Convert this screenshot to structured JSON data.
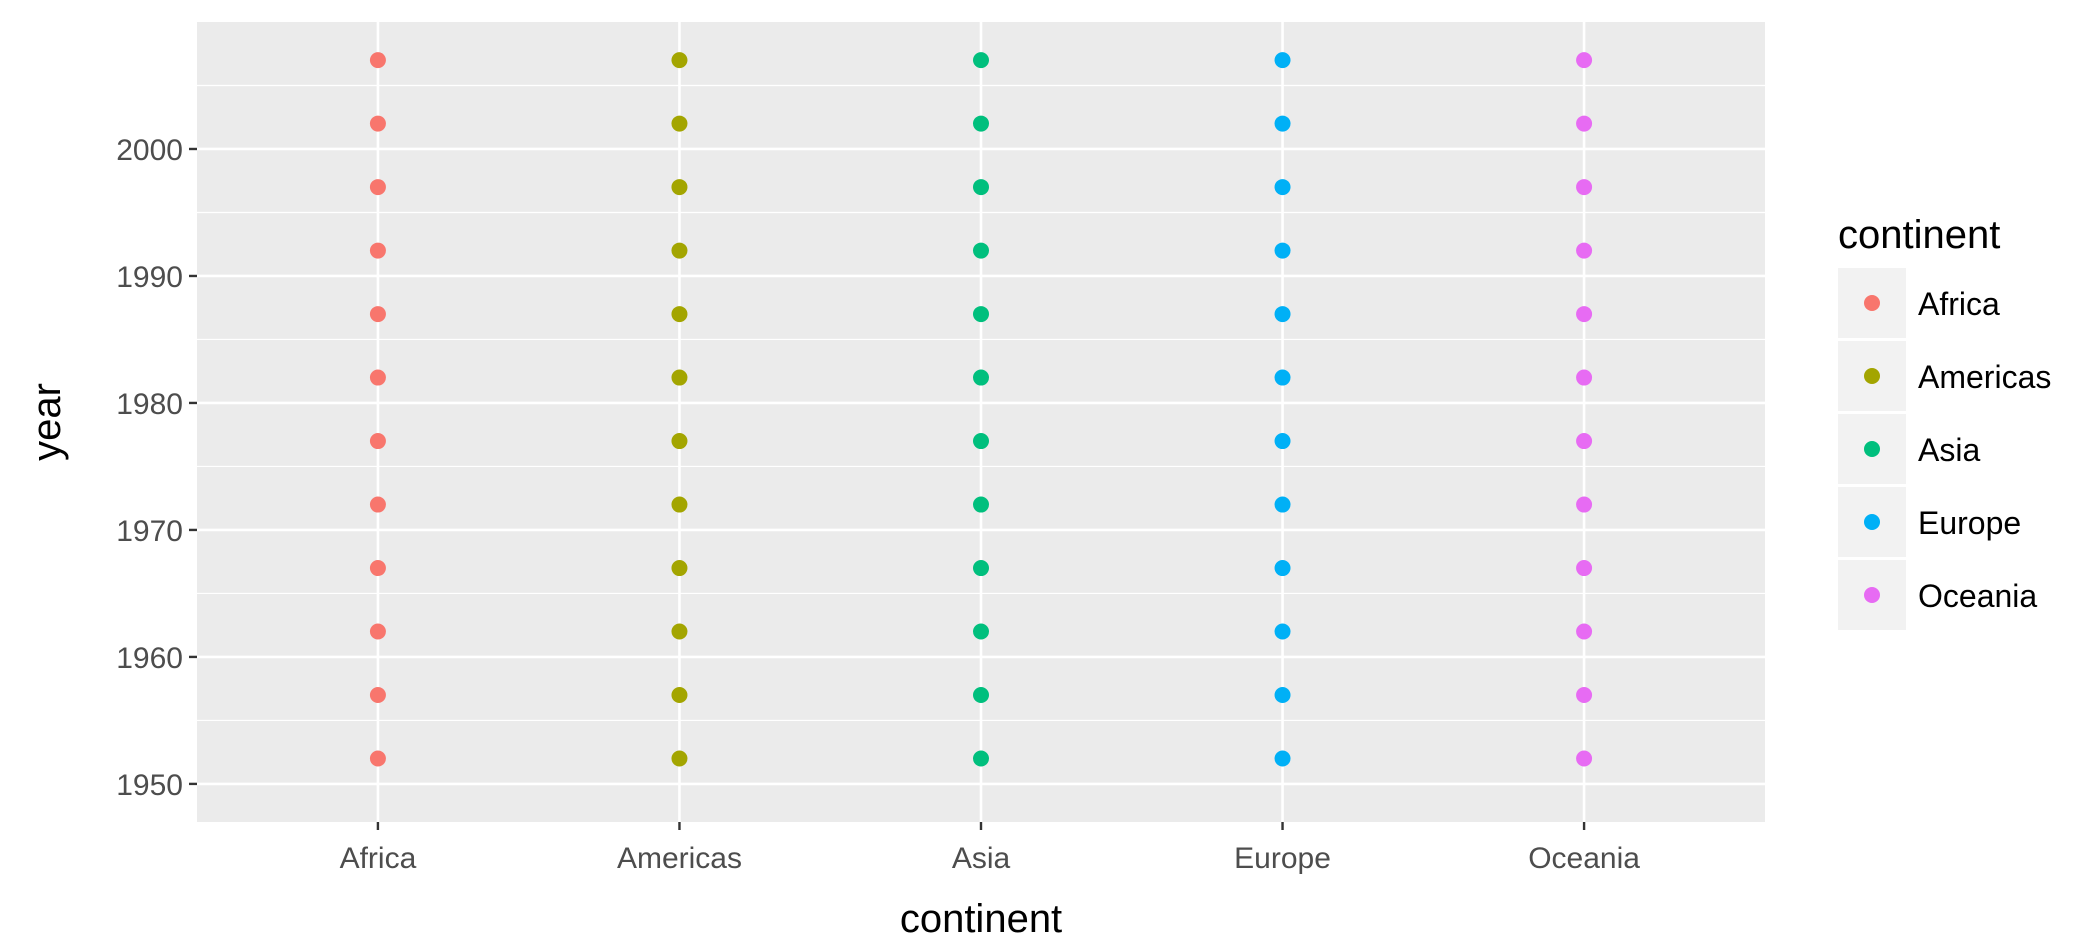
{
  "chart_data": {
    "type": "scatter",
    "title": "",
    "xlabel": "continent",
    "ylabel": "year",
    "categories": [
      "Africa",
      "Americas",
      "Asia",
      "Europe",
      "Oceania"
    ],
    "ylim": [
      1947,
      2010
    ],
    "y_ticks": [
      1950,
      1960,
      1970,
      1980,
      1990,
      2000
    ],
    "y_tick_labels": [
      "1950",
      "1960",
      "1970",
      "1980",
      "1990",
      "2000"
    ],
    "grid": true,
    "background": "#EBEBEB",
    "legend": {
      "title": "continent",
      "position": "right",
      "entries": [
        "Africa",
        "Americas",
        "Asia",
        "Europe",
        "Oceania"
      ]
    },
    "series": [
      {
        "name": "Africa",
        "color": "#F8766D",
        "x": "Africa",
        "y": [
          1952,
          1957,
          1962,
          1967,
          1972,
          1977,
          1982,
          1987,
          1992,
          1997,
          2002,
          2007
        ]
      },
      {
        "name": "Americas",
        "color": "#A3A500",
        "x": "Americas",
        "y": [
          1952,
          1957,
          1962,
          1967,
          1972,
          1977,
          1982,
          1987,
          1992,
          1997,
          2002,
          2007
        ]
      },
      {
        "name": "Asia",
        "color": "#00BF7D",
        "x": "Asia",
        "y": [
          1952,
          1957,
          1962,
          1967,
          1972,
          1977,
          1982,
          1987,
          1992,
          1997,
          2002,
          2007
        ]
      },
      {
        "name": "Europe",
        "color": "#00B0F6",
        "x": "Europe",
        "y": [
          1952,
          1957,
          1962,
          1967,
          1972,
          1977,
          1982,
          1987,
          1992,
          1997,
          2002,
          2007
        ]
      },
      {
        "name": "Oceania",
        "color": "#E76BF3",
        "x": "Oceania",
        "y": [
          1952,
          1957,
          1962,
          1967,
          1972,
          1977,
          1982,
          1987,
          1992,
          1997,
          2002,
          2007
        ]
      }
    ]
  }
}
